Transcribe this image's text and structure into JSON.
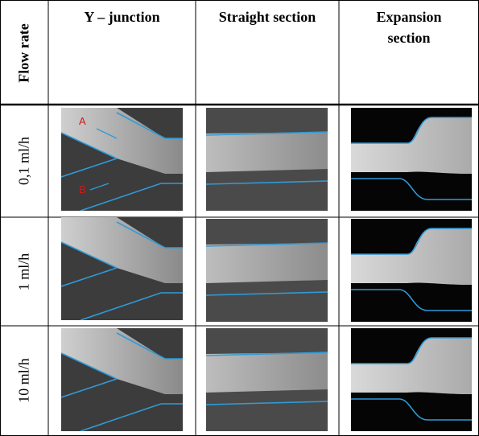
{
  "table": {
    "header": [
      "Flow rate",
      "Y – junction",
      "Straight section",
      "Expansion section"
    ],
    "rows": [
      "0,1 ml/h",
      "1 ml/h",
      "10 ml/h"
    ]
  },
  "annotations": [
    "A",
    "B"
  ]
}
